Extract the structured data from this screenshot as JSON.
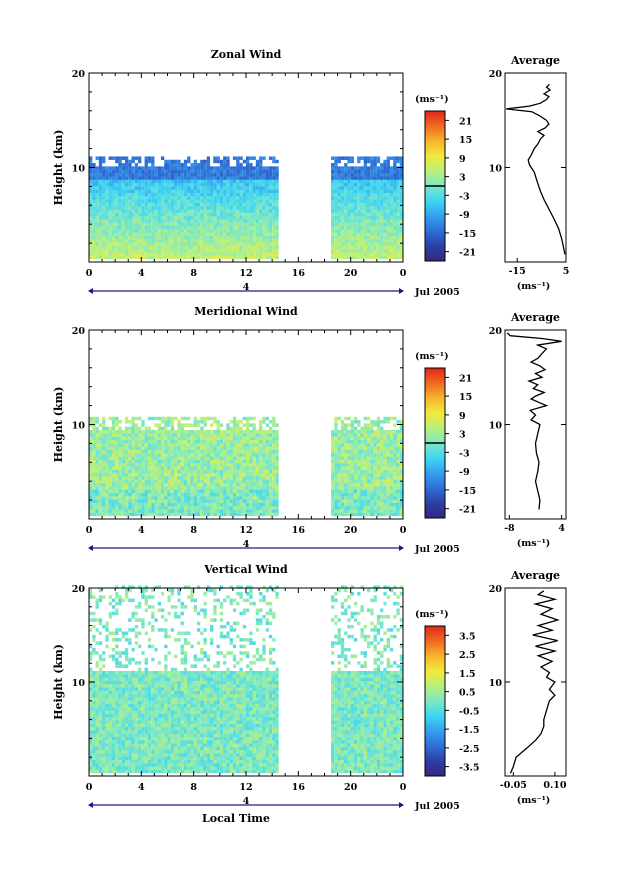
{
  "colorbar": {
    "stops": [
      "#34287a",
      "#2d3fa6",
      "#2f6fd6",
      "#33a0ef",
      "#3ed6f2",
      "#7de8c4",
      "#b9f07a",
      "#f2ea3c",
      "#f6b42c",
      "#f06a1e",
      "#e0261a"
    ]
  },
  "chart_data": [
    {
      "type": "heatmap",
      "title": "Zonal Wind",
      "ylabel": "Height (km)",
      "xlim": [
        0,
        24
      ],
      "ylim": [
        0,
        20
      ],
      "x_ticks": [
        "0",
        "4",
        "8",
        "12",
        "16",
        "20",
        "0"
      ],
      "y_ticks": [
        "10",
        "20"
      ],
      "date_label": "Jul 2005",
      "day_marker": "4",
      "data_gap_hours": [
        14.5,
        18.5
      ],
      "data_top_km": 11,
      "colorbar": {
        "unit": "(ms⁻¹)",
        "ticks": [
          "21",
          "15",
          "9",
          "3",
          "-3",
          "-9",
          "-15",
          "-21"
        ],
        "range": [
          -24,
          24
        ]
      },
      "average_profile": {
        "title": "Average",
        "unit": "(ms⁻¹)",
        "x_ticks": [
          "-15",
          "5"
        ],
        "xlim": [
          -20,
          5
        ],
        "y_ticks": [
          "10",
          "20"
        ],
        "points": [
          [
            4.6,
            0.8
          ],
          [
            4.0,
            1.5
          ],
          [
            3.2,
            2.5
          ],
          [
            2.0,
            3.5
          ],
          [
            0.2,
            4.5
          ],
          [
            -1.8,
            5.5
          ],
          [
            -3.8,
            6.5
          ],
          [
            -5.5,
            7.5
          ],
          [
            -6.8,
            8.5
          ],
          [
            -8.0,
            9.5
          ],
          [
            -10.0,
            10.3
          ],
          [
            -10.5,
            10.8
          ],
          [
            -9.5,
            11.2
          ],
          [
            -8.0,
            12.0
          ],
          [
            -6.5,
            12.5
          ],
          [
            -5.5,
            13.0
          ],
          [
            -4.0,
            13.4
          ],
          [
            -6.5,
            13.8
          ],
          [
            -3.5,
            14.2
          ],
          [
            -2.0,
            14.6
          ],
          [
            -3.0,
            15.0
          ],
          [
            -6.0,
            15.5
          ],
          [
            -9.0,
            15.9
          ],
          [
            -19.5,
            16.2
          ],
          [
            -10.0,
            16.5
          ],
          [
            -5.5,
            16.8
          ],
          [
            -3.0,
            17.2
          ],
          [
            -2.0,
            17.5
          ],
          [
            -4.0,
            17.8
          ],
          [
            -1.5,
            18.2
          ],
          [
            -3.0,
            18.5
          ],
          [
            -1.8,
            18.8
          ]
        ]
      }
    },
    {
      "type": "heatmap",
      "title": "Meridional Wind",
      "ylabel": "Height (km)",
      "xlim": [
        0,
        24
      ],
      "ylim": [
        0,
        20
      ],
      "x_ticks": [
        "0",
        "4",
        "8",
        "12",
        "16",
        "20",
        "0"
      ],
      "y_ticks": [
        "10",
        "20"
      ],
      "date_label": "Jul 2005",
      "day_marker": "4",
      "data_gap_hours": [
        14.5,
        18.5
      ],
      "data_top_km": 10.5,
      "colorbar": {
        "unit": "(ms⁻¹)",
        "ticks": [
          "21",
          "15",
          "9",
          "3",
          "-3",
          "-9",
          "-15",
          "-21"
        ],
        "range": [
          -24,
          24
        ]
      },
      "average_profile": {
        "title": "Average",
        "unit": "(ms⁻¹)",
        "x_ticks": [
          "-8",
          "4"
        ],
        "xlim": [
          -9,
          5
        ],
        "y_ticks": [
          "10",
          "20"
        ],
        "points": [
          [
            -1.2,
            1.0
          ],
          [
            -1.0,
            2.0
          ],
          [
            -1.5,
            3.0
          ],
          [
            -2.0,
            4.0
          ],
          [
            -1.5,
            5.0
          ],
          [
            -1.2,
            6.0
          ],
          [
            -1.8,
            7.0
          ],
          [
            -2.0,
            8.0
          ],
          [
            -1.5,
            9.0
          ],
          [
            -1.0,
            10.0
          ],
          [
            -3.0,
            10.5
          ],
          [
            -2.0,
            11.0
          ],
          [
            -3.2,
            11.5
          ],
          [
            0.5,
            12.0
          ],
          [
            -1.0,
            12.3
          ],
          [
            -3.0,
            12.7
          ],
          [
            -2.0,
            13.0
          ],
          [
            0.0,
            13.4
          ],
          [
            -2.5,
            13.8
          ],
          [
            -1.5,
            14.2
          ],
          [
            -3.5,
            14.6
          ],
          [
            -0.5,
            15.0
          ],
          [
            -2.0,
            15.4
          ],
          [
            0.2,
            15.8
          ],
          [
            -1.0,
            16.2
          ],
          [
            -3.0,
            16.6
          ],
          [
            -1.5,
            17.0
          ],
          [
            -0.5,
            17.5
          ],
          [
            0.5,
            18.0
          ],
          [
            -1.5,
            18.4
          ],
          [
            4.0,
            18.8
          ],
          [
            -0.5,
            19.1
          ],
          [
            -7.8,
            19.4
          ],
          [
            -8.5,
            19.7
          ]
        ]
      }
    },
    {
      "type": "heatmap",
      "title": "Vertical Wind",
      "ylabel": "Height (km)",
      "xlabel": "Local Time",
      "xlim": [
        0,
        24
      ],
      "ylim": [
        0,
        20
      ],
      "x_ticks": [
        "0",
        "4",
        "8",
        "12",
        "16",
        "20",
        "0"
      ],
      "y_ticks": [
        "10",
        "20"
      ],
      "date_label": "Jul 2005",
      "day_marker": "4",
      "data_gap_hours": [
        14.5,
        18.5
      ],
      "data_top_km": 20,
      "colorbar": {
        "unit": "(ms⁻¹)",
        "ticks": [
          "3.5",
          "2.5",
          "1.5",
          "0.5",
          "-0.5",
          "-1.5",
          "-2.5",
          "-3.5"
        ],
        "range": [
          -4,
          4
        ]
      },
      "average_profile": {
        "title": "Average",
        "unit": "(ms⁻¹)",
        "x_ticks": [
          "-0.05",
          "0.10"
        ],
        "xlim": [
          -0.08,
          0.14
        ],
        "y_ticks": [
          "10",
          "20"
        ],
        "points": [
          [
            -0.06,
            0.3
          ],
          [
            -0.05,
            1.0
          ],
          [
            -0.04,
            2.0
          ],
          [
            0.0,
            3.0
          ],
          [
            0.03,
            3.8
          ],
          [
            0.05,
            4.5
          ],
          [
            0.06,
            5.3
          ],
          [
            0.06,
            6.0
          ],
          [
            0.07,
            7.0
          ],
          [
            0.08,
            8.0
          ],
          [
            0.1,
            8.6
          ],
          [
            0.08,
            9.2
          ],
          [
            0.1,
            10.0
          ],
          [
            0.07,
            10.5
          ],
          [
            0.08,
            11.0
          ],
          [
            0.05,
            11.6
          ],
          [
            0.09,
            12.2
          ],
          [
            0.04,
            12.8
          ],
          [
            0.1,
            13.3
          ],
          [
            0.03,
            13.8
          ],
          [
            0.11,
            14.4
          ],
          [
            0.02,
            15.0
          ],
          [
            0.09,
            15.5
          ],
          [
            0.04,
            16.0
          ],
          [
            0.11,
            16.6
          ],
          [
            0.05,
            17.2
          ],
          [
            0.09,
            17.8
          ],
          [
            0.03,
            18.3
          ],
          [
            0.1,
            18.8
          ],
          [
            0.04,
            19.3
          ],
          [
            0.06,
            19.7
          ]
        ]
      }
    }
  ]
}
